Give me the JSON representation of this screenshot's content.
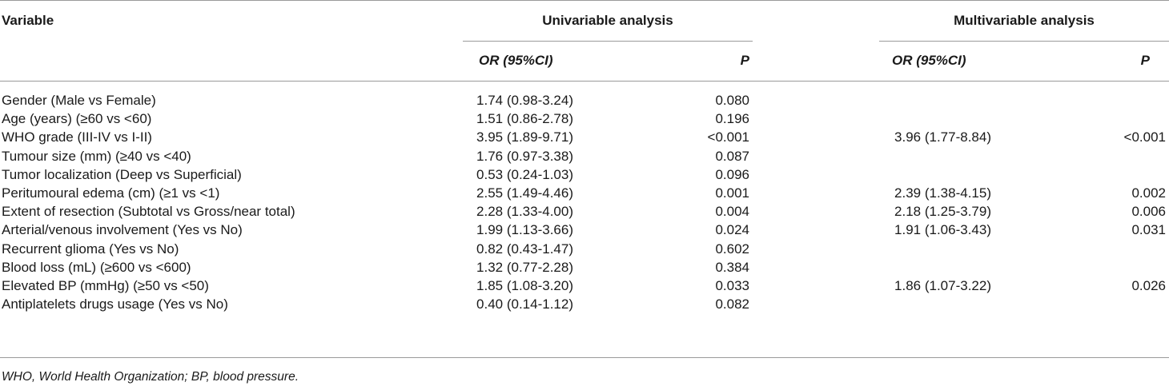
{
  "table": {
    "header": {
      "variable": "Variable",
      "univariable": "Univariable analysis",
      "multivariable": "Multivariable analysis",
      "or_label": "OR (95%CI)",
      "p_label": "P"
    },
    "rows": [
      {
        "variable": "Gender (Male vs Female)",
        "uni_or": "1.74 (0.98-3.24)",
        "uni_p": "0.080",
        "multi_or": "",
        "multi_p": ""
      },
      {
        "variable": "Age (years) (≥60 vs <60)",
        "uni_or": "1.51 (0.86-2.78)",
        "uni_p": "0.196",
        "multi_or": "",
        "multi_p": ""
      },
      {
        "variable": "WHO grade (III-IV vs I-II)",
        "uni_or": "3.95 (1.89-9.71)",
        "uni_p": "<0.001",
        "multi_or": "3.96 (1.77-8.84)",
        "multi_p": "<0.001"
      },
      {
        "variable": "Tumour size (mm) (≥40 vs <40)",
        "uni_or": "1.76 (0.97-3.38)",
        "uni_p": "0.087",
        "multi_or": "",
        "multi_p": ""
      },
      {
        "variable": "Tumor localization (Deep vs Superficial)",
        "uni_or": "0.53 (0.24-1.03)",
        "uni_p": "0.096",
        "multi_or": "",
        "multi_p": ""
      },
      {
        "variable": "Peritumoural edema (cm) (≥1 vs <1)",
        "uni_or": "2.55 (1.49-4.46)",
        "uni_p": "0.001",
        "multi_or": "2.39 (1.38-4.15)",
        "multi_p": "0.002"
      },
      {
        "variable": "Extent of resection (Subtotal vs Gross/near total)",
        "uni_or": "2.28 (1.33-4.00)",
        "uni_p": "0.004",
        "multi_or": "2.18 (1.25-3.79)",
        "multi_p": "0.006"
      },
      {
        "variable": "Arterial/venous involvement (Yes vs No)",
        "uni_or": "1.99 (1.13-3.66)",
        "uni_p": "0.024",
        "multi_or": "1.91 (1.06-3.43)",
        "multi_p": "0.031"
      },
      {
        "variable": "Recurrent glioma (Yes vs No)",
        "uni_or": "0.82 (0.43-1.47)",
        "uni_p": "0.602",
        "multi_or": "",
        "multi_p": ""
      },
      {
        "variable": "Blood loss (mL) (≥600 vs <600)",
        "uni_or": "1.32 (0.77-2.28)",
        "uni_p": "0.384",
        "multi_or": "",
        "multi_p": ""
      },
      {
        "variable": "Elevated BP (mmHg) (≥50 vs <50)",
        "uni_or": "1.85 (1.08-3.20)",
        "uni_p": "0.033",
        "multi_or": "1.86 (1.07-3.22)",
        "multi_p": "0.026"
      },
      {
        "variable": "Antiplatelets drugs usage (Yes vs No)",
        "uni_or": "0.40 (0.14-1.12)",
        "uni_p": "0.082",
        "multi_or": "",
        "multi_p": ""
      }
    ]
  },
  "footnote": "WHO, World Health Organization; BP, blood pressure."
}
